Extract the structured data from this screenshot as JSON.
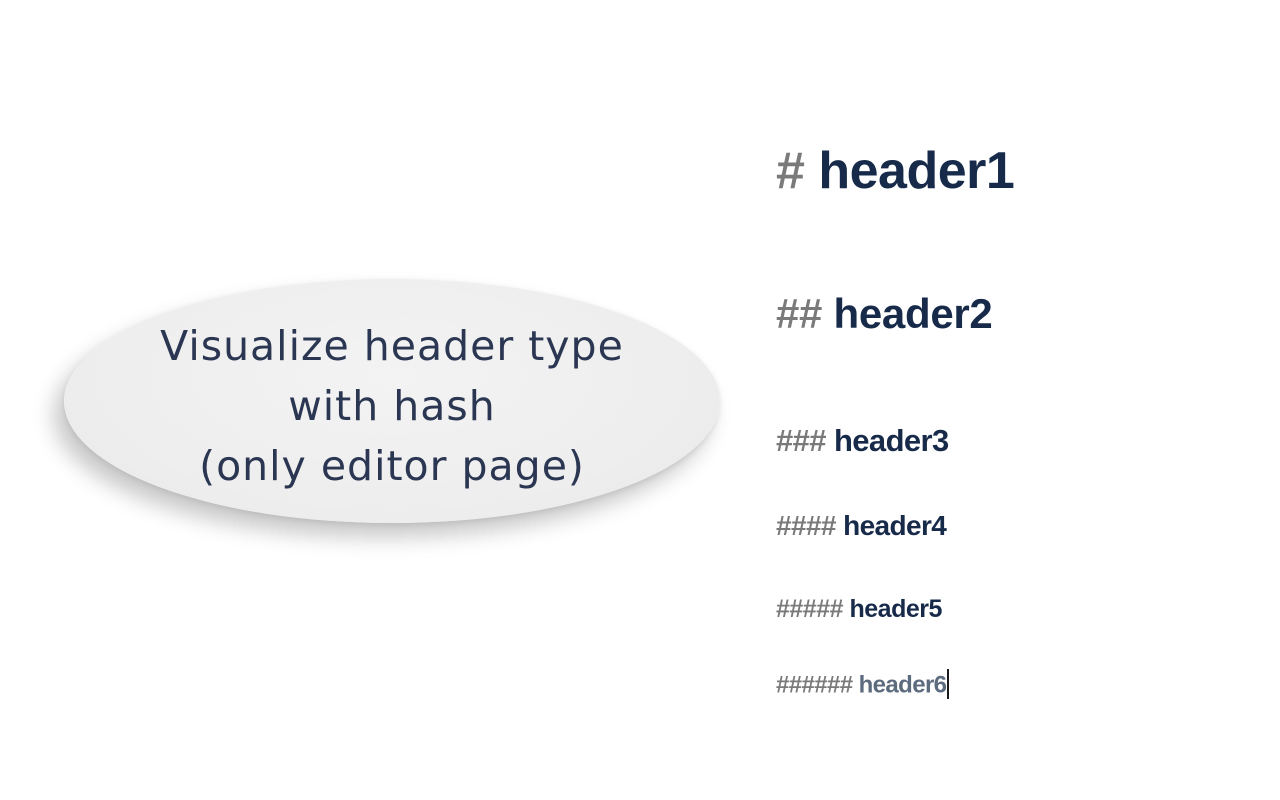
{
  "callout": {
    "lines": [
      "Visualize header type",
      "with hash",
      "(only editor page)"
    ]
  },
  "headers": [
    {
      "hash": "#",
      "text": "header1"
    },
    {
      "hash": "##",
      "text": "header2"
    },
    {
      "hash": "###",
      "text": "header3"
    },
    {
      "hash": "####",
      "text": "header4"
    },
    {
      "hash": "#####",
      "text": "header5"
    },
    {
      "hash": "######",
      "text": "header6"
    }
  ],
  "colors": {
    "hash": "#7a7a7a",
    "header_text": "#172a4a",
    "callout_text": "#2b3752",
    "callout_bg": "#eeeeee"
  }
}
